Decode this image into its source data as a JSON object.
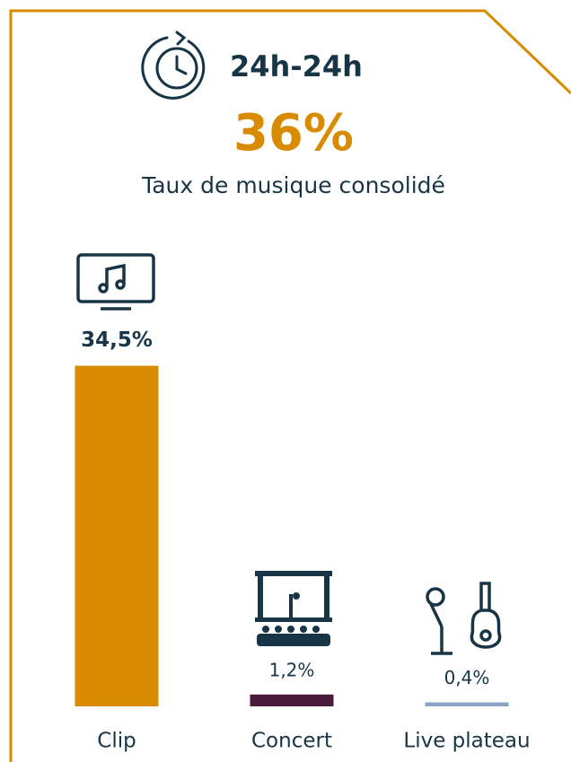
{
  "chart_data": {
    "type": "bar",
    "header": "24h-24h",
    "headline": "36%",
    "subtitle": "Taux de musique consolidé",
    "categories": [
      "Clip",
      "Concert",
      "Live plateau"
    ],
    "values": [
      34.5,
      1.2,
      0.4
    ],
    "value_labels": [
      "34,5%",
      "1,2%",
      "0,4%"
    ],
    "colors": [
      "#d98b00",
      "#4a1a3a",
      "#8aa3c4"
    ]
  }
}
